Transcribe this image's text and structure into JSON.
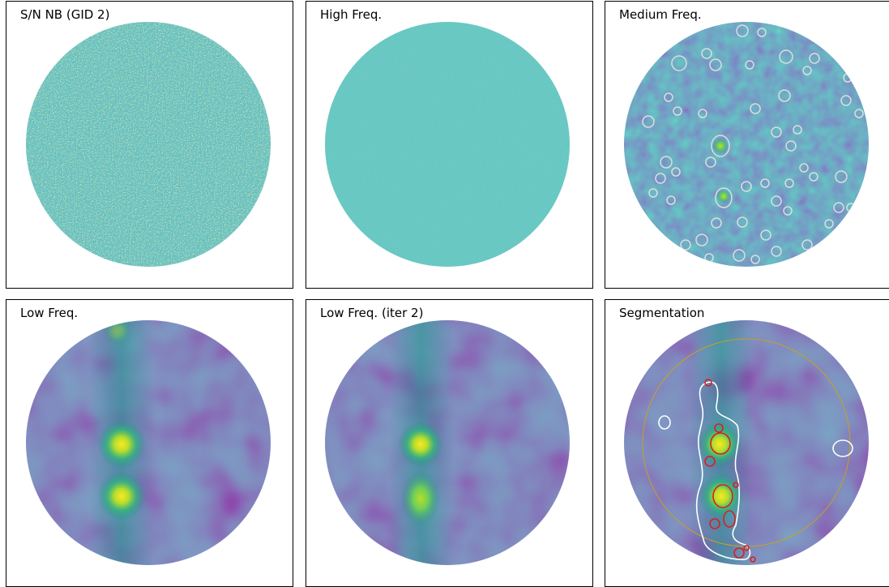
{
  "panels": [
    {
      "title": "S/N NB (GID 2)"
    },
    {
      "title": "High Freq."
    },
    {
      "title": "Medium Freq."
    },
    {
      "title": "Low Freq."
    },
    {
      "title": "Low Freq. (iter 2)"
    },
    {
      "title": "Segmentation"
    }
  ]
}
